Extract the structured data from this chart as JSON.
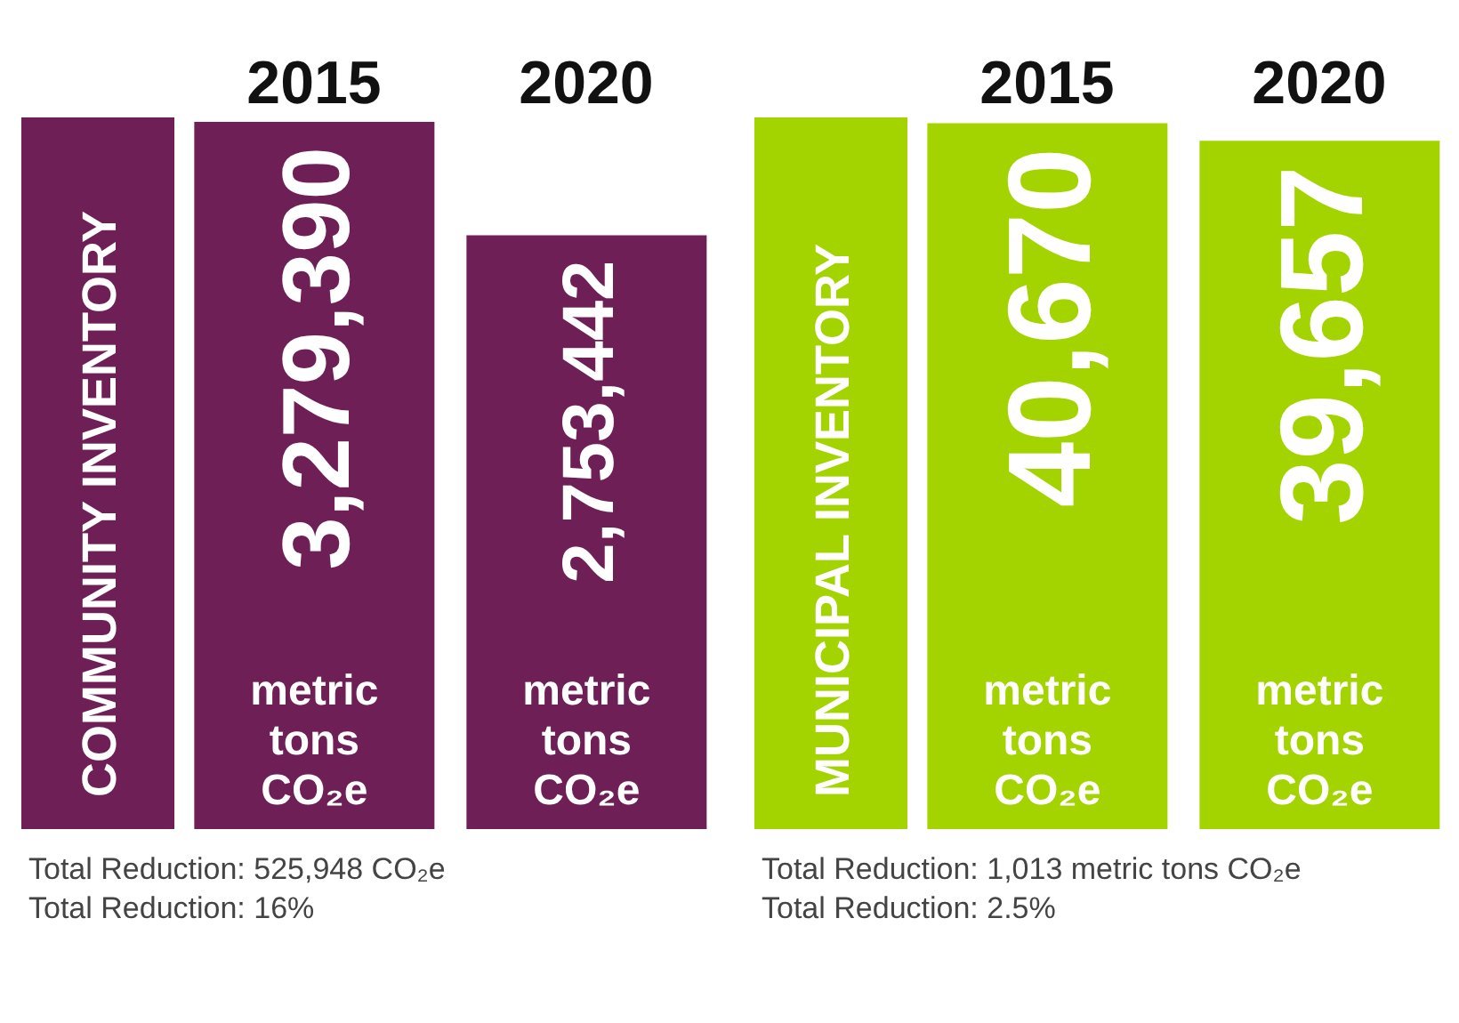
{
  "chart_data": [
    {
      "type": "bar",
      "title": "COMMUNITY INVENTORY",
      "categories": [
        "2015",
        "2020"
      ],
      "values": [
        3279390,
        2753442
      ],
      "value_labels": [
        "3,279,390",
        "2,753,442"
      ],
      "color": "#6d1f56",
      "ylim": [
        0,
        3300000
      ],
      "tick_labels": "x",
      "grid": false,
      "legend": false,
      "annotations": [
        "metric tons CO₂e",
        "metric tons CO₂e",
        "Total Reduction: 525,948 CO₂e",
        "Total Reduction: 16%"
      ]
    },
    {
      "type": "bar",
      "title": "MUNICIPAL INVENTORY",
      "categories": [
        "2015",
        "2020"
      ],
      "values": [
        40670,
        39657
      ],
      "value_labels": [
        "40,670",
        "39,657"
      ],
      "color": "#a4d400",
      "ylim": [
        0,
        41000
      ],
      "tick_labels": "x",
      "grid": false,
      "legend": false,
      "annotations": [
        "metric tons CO₂e",
        "metric tons CO₂e",
        "Total Reduction: 1,013 metric tons CO₂e",
        "Total Reduction: 2.5%"
      ]
    }
  ]
}
